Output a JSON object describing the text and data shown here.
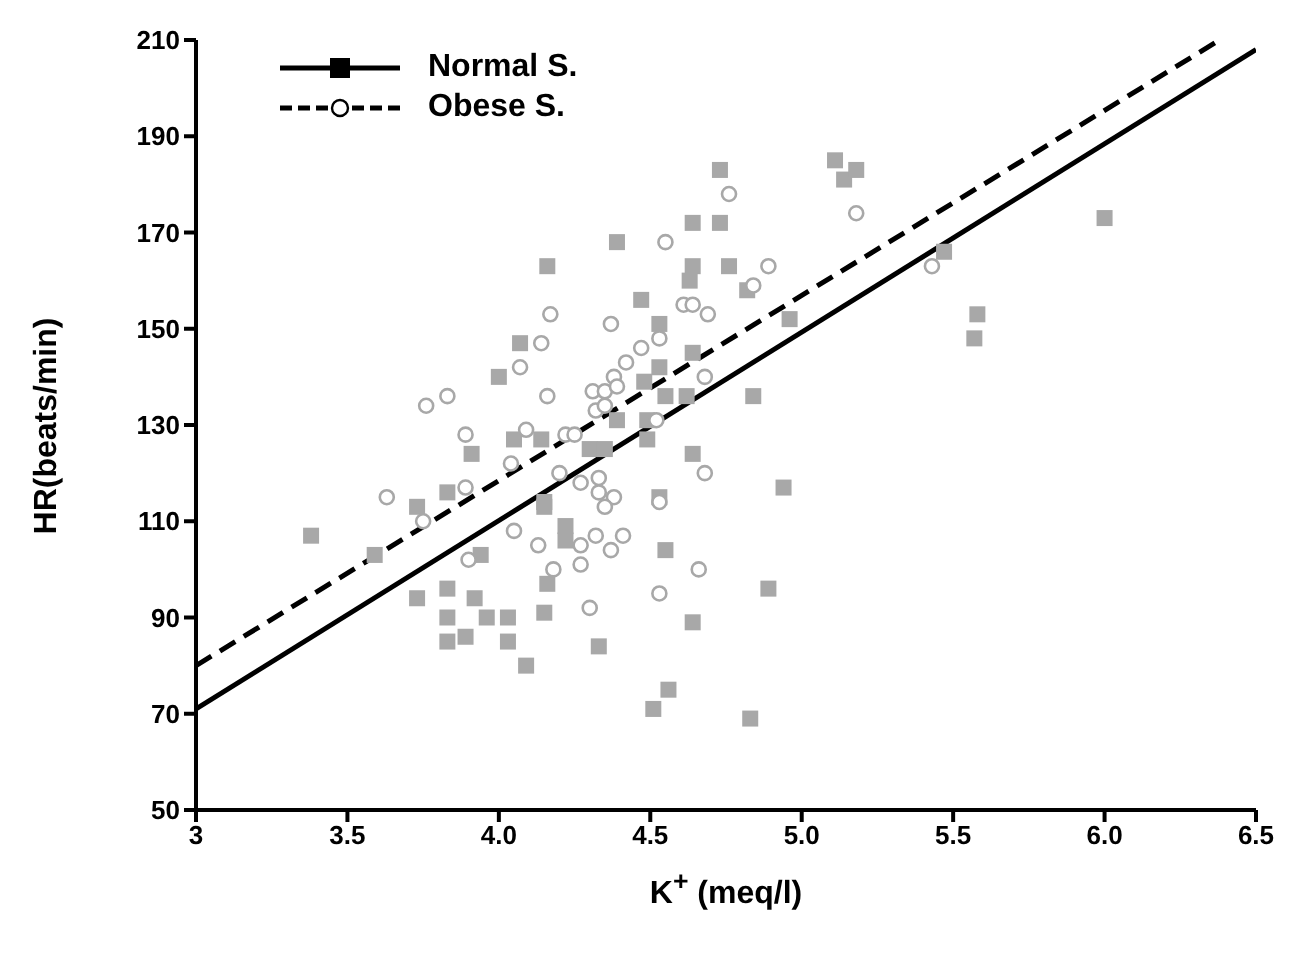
{
  "chart_data": {
    "type": "scatter",
    "xlabel": "K$^{+}$ (meq/l)",
    "ylabel": "HR(beats/min)",
    "xlim": [
      3,
      6.5
    ],
    "xticks": [
      {
        "value": 3,
        "label": "3"
      },
      {
        "value": 3.5,
        "label": "3.5"
      },
      {
        "value": 4,
        "label": "4.0"
      },
      {
        "value": 4.5,
        "label": "4.5"
      },
      {
        "value": 5,
        "label": "5.0"
      },
      {
        "value": 5.5,
        "label": "5.5"
      },
      {
        "value": 6,
        "label": "6.0"
      },
      {
        "value": 6.5,
        "label": "6.5"
      }
    ],
    "ylim": [
      50,
      210
    ],
    "yticks": [
      50,
      70,
      90,
      110,
      130,
      150,
      170,
      190,
      210
    ],
    "grid": false,
    "legend": "top left",
    "series": [
      {
        "name": "Normal S.",
        "type": "line",
        "color": "#000000",
        "line_style": "solid",
        "marker": "none",
        "x": [
          3,
          6.5
        ],
        "values": [
          71,
          208
        ]
      },
      {
        "type": "scatter",
        "color": "#a8a8a8",
        "marker": "square",
        "x": [
          4.16,
          4.07,
          4.0,
          3.91,
          4.05,
          4.14,
          3.83,
          3.73,
          3.38,
          3.59,
          3.94,
          4.15,
          4.16,
          3.73,
          3.83,
          3.92,
          3.83,
          3.96,
          4.03,
          4.15,
          3.83,
          3.89,
          4.03,
          4.09,
          4.73,
          5.11,
          5.14,
          5.18,
          4.64,
          4.73,
          4.39,
          4.64,
          4.63,
          4.76,
          4.82,
          4.47,
          4.53,
          4.96,
          4.53,
          4.64,
          4.48,
          4.55,
          4.62,
          4.84,
          4.39,
          4.49,
          4.3,
          4.35,
          4.49,
          4.64,
          4.94,
          4.15,
          4.53,
          4.22,
          4.22,
          4.55,
          4.89,
          4.64,
          4.33,
          6.0,
          5.47,
          5.58,
          5.57,
          4.51,
          4.56,
          4.83
        ],
        "values": [
          163,
          147,
          140,
          124,
          127,
          127,
          116,
          113,
          107,
          103,
          103,
          114,
          97,
          94,
          96,
          94,
          90,
          90,
          90,
          91,
          85,
          86,
          85,
          80,
          183,
          185,
          181,
          183,
          172,
          172,
          168,
          163,
          160,
          163,
          158,
          156,
          151,
          152,
          142,
          145,
          139,
          136,
          136,
          136,
          131,
          131,
          125,
          125,
          127,
          124,
          117,
          113,
          115,
          109,
          106,
          104,
          96,
          89,
          84,
          173,
          166,
          153,
          148,
          71,
          75,
          69
        ]
      },
      {
        "name": "Obese S.",
        "type": "line",
        "color": "#000000",
        "line_style": "dashed",
        "marker": "none",
        "x": [
          3,
          6.38
        ],
        "values": [
          80,
          210
        ]
      },
      {
        "type": "scatter",
        "color": "#a8a8a8",
        "marker": "circle",
        "x": [
          4.17,
          4.14,
          4.07,
          3.76,
          3.83,
          4.16,
          3.89,
          4.09,
          4.04,
          3.89,
          3.63,
          3.75,
          3.9,
          4.05,
          4.13,
          4.18,
          4.76,
          5.18,
          4.55,
          4.89,
          4.84,
          4.61,
          4.64,
          4.69,
          4.37,
          4.47,
          4.53,
          4.42,
          4.68,
          4.38,
          4.31,
          4.35,
          4.39,
          4.32,
          4.35,
          4.52,
          4.22,
          4.25,
          4.68,
          4.2,
          4.27,
          4.33,
          4.33,
          4.38,
          4.35,
          4.53,
          4.27,
          4.32,
          4.37,
          4.41,
          4.27,
          4.66,
          4.3,
          4.53,
          5.43
        ],
        "values": [
          153,
          147,
          142,
          134,
          136,
          136,
          128,
          129,
          122,
          117,
          115,
          110,
          102,
          108,
          105,
          100,
          178,
          174,
          168,
          163,
          159,
          155,
          155,
          153,
          151,
          146,
          148,
          143,
          140,
          140,
          137,
          137,
          138,
          133,
          134,
          131,
          128,
          128,
          120,
          120,
          118,
          119,
          116,
          115,
          113,
          114,
          105,
          107,
          104,
          107,
          101,
          100,
          92,
          95,
          163
        ]
      }
    ]
  }
}
